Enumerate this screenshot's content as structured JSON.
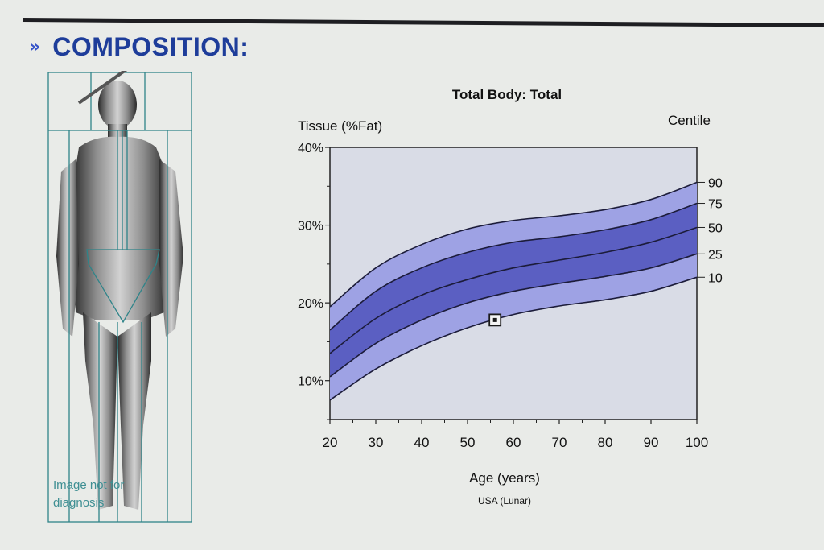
{
  "section": {
    "bullet": "»",
    "title": "COMPOSITION:"
  },
  "scan": {
    "caption_line1": "Image not for",
    "caption_line2": "diagnosis"
  },
  "chart_data": {
    "type": "area",
    "title": "Total Body: Total",
    "ylabel": "Tissue (%Fat)",
    "xlabel": "Age (years)",
    "source": "USA (Lunar)",
    "centile_label": "Centile",
    "xlim": [
      20,
      100
    ],
    "ylim": [
      5,
      40
    ],
    "x_ticks": [
      20,
      30,
      40,
      50,
      60,
      70,
      80,
      90,
      100
    ],
    "y_ticks": [
      {
        "value": 10,
        "label": "10%"
      },
      {
        "value": 20,
        "label": "20%"
      },
      {
        "value": 30,
        "label": "30%"
      },
      {
        "value": 40,
        "label": "40%"
      }
    ],
    "x": [
      20,
      30,
      40,
      50,
      60,
      70,
      80,
      90,
      100
    ],
    "series": [
      {
        "name": "90",
        "values": [
          19.5,
          24.5,
          27.5,
          29.5,
          30.6,
          31.2,
          32.0,
          33.3,
          35.5
        ]
      },
      {
        "name": "75",
        "values": [
          16.5,
          21.5,
          24.5,
          26.5,
          27.8,
          28.5,
          29.4,
          30.7,
          32.8
        ]
      },
      {
        "name": "50",
        "values": [
          13.5,
          18.0,
          21.0,
          23.0,
          24.5,
          25.5,
          26.5,
          27.8,
          29.7
        ]
      },
      {
        "name": "25",
        "values": [
          10.5,
          14.8,
          17.8,
          20.0,
          21.5,
          22.5,
          23.4,
          24.5,
          26.3
        ]
      },
      {
        "name": "10",
        "values": [
          7.5,
          11.5,
          14.5,
          16.8,
          18.5,
          19.6,
          20.4,
          21.5,
          23.3
        ]
      }
    ],
    "patient_point": {
      "x": 56,
      "y": 17.8
    },
    "colors": {
      "plot_bg": "#d9dce6",
      "outer_band": "#9ea2e4",
      "inner_band": "#5b5fc2",
      "curve": "#1c1c3a",
      "marker": "#1a1a1a"
    }
  }
}
